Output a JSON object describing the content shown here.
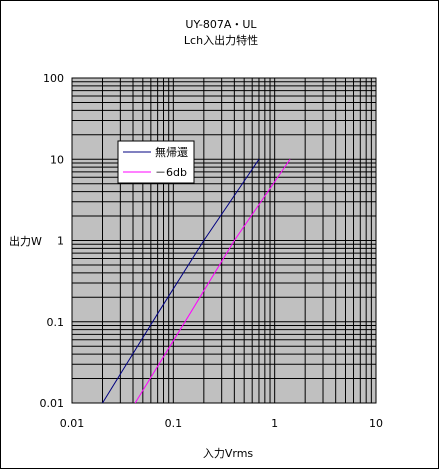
{
  "chart_data": {
    "type": "line",
    "title": "UY-807A・UL",
    "subtitle": "Lch入出力特性",
    "xlabel": "入力Vrms",
    "ylabel": "出力W",
    "x_scale": "log",
    "y_scale": "log",
    "xlim": [
      0.01,
      10
    ],
    "ylim": [
      0.01,
      100
    ],
    "x_ticks": [
      "0.01",
      "0.1",
      "1",
      "10"
    ],
    "y_ticks": [
      "100",
      "10",
      "1",
      "0.1",
      "0.01"
    ],
    "grid": true,
    "plot_background": "#c0c0c0",
    "legend_position": "upper-left",
    "series": [
      {
        "name": "無帰還",
        "color": "#000080",
        "x": [
          0.02,
          0.072,
          0.2,
          0.7
        ],
        "y": [
          0.01,
          0.133,
          1.0,
          10
        ]
      },
      {
        "name": "－6db",
        "color": "#ff00ff",
        "x": [
          0.042,
          0.15,
          0.4,
          1.42
        ],
        "y": [
          0.01,
          0.133,
          1.0,
          10
        ]
      }
    ]
  }
}
